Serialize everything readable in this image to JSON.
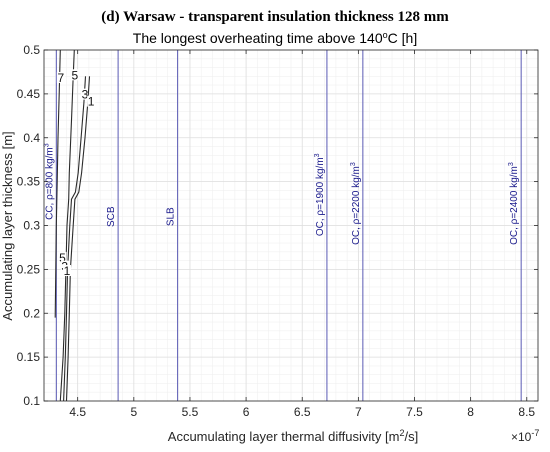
{
  "chart_data": {
    "type": "line",
    "suptitle": "(d) Warsaw - transparent insulation thickness 128 mm",
    "title": "The longest overheating time above 140°C [h]",
    "title_parts": {
      "prefix": "The longest overheating time above 140",
      "sup": "o",
      "suffix": "C [h]"
    },
    "xlabel": "Accumulating layer thermal diffusivity [m²/s]",
    "xlabel_parts": {
      "prefix": "Accumulating layer thermal diffusivity [m",
      "sup": "2",
      "suffix": "/s]"
    },
    "ylabel": "Accumulating layer thickness [m]",
    "x_multiplier": "×10⁻⁷",
    "x_multiplier_parts": {
      "base": "×10",
      "exp": "-7"
    },
    "xlim": [
      4.2,
      8.6
    ],
    "ylim": [
      0.1,
      0.5
    ],
    "xticks": [
      4.5,
      5,
      5.5,
      6,
      6.5,
      7,
      7.5,
      8,
      8.5
    ],
    "xtick_labels": [
      "4.5",
      "5",
      "5.5",
      "6",
      "6.5",
      "7",
      "7.5",
      "8",
      "8.5"
    ],
    "yticks": [
      0.1,
      0.15,
      0.2,
      0.25,
      0.3,
      0.35,
      0.4,
      0.45,
      0.5
    ],
    "ytick_labels": [
      "0.1",
      "0.15",
      "0.2",
      "0.25",
      "0.3",
      "0.35",
      "0.4",
      "0.45",
      "0.5"
    ],
    "grid": "on (major and minor)",
    "colors": {
      "contour": "#2b2b2b",
      "material_line": "#5b5bb5",
      "material_text": "#1a1a8c",
      "grid": "#e6e6e6"
    },
    "materials": [
      {
        "label": "CC, ρ=800 kg/m³",
        "prefix": "CC, ρ=800 kg/m",
        "sup": "3",
        "x": 4.31,
        "label_y": 0.35
      },
      {
        "label": "SCB",
        "prefix": "SCB",
        "sup": "",
        "x": 4.86,
        "label_y": 0.31
      },
      {
        "label": "SLB",
        "prefix": "SLB",
        "sup": "",
        "x": 5.39,
        "label_y": 0.31
      },
      {
        "label": "OC, ρ=1900 kg/m³",
        "prefix": "OC, ρ=1900 kg/m",
        "sup": "3",
        "x": 6.72,
        "label_y": 0.335
      },
      {
        "label": "OC, ρ=2200 kg/m³",
        "prefix": "OC, ρ=2200 kg/m",
        "sup": "3",
        "x": 7.04,
        "label_y": 0.325
      },
      {
        "label": "OC, ρ=2400 kg/m³",
        "prefix": "OC, ρ=2400 kg/m",
        "sup": "3",
        "x": 8.45,
        "label_y": 0.325
      }
    ],
    "contours": [
      {
        "level": 7,
        "label": "7",
        "points": [
          [
            4.3,
            0.195
          ],
          [
            4.305,
            0.25
          ],
          [
            4.31,
            0.3
          ],
          [
            4.318,
            0.35
          ],
          [
            4.325,
            0.4
          ],
          [
            4.335,
            0.45
          ],
          [
            4.345,
            0.5
          ]
        ],
        "labels": [
          {
            "text": "7",
            "x": 4.35,
            "y": 0.467
          }
        ]
      },
      {
        "level": 5,
        "label": "5",
        "points": [
          [
            4.345,
            0.1
          ],
          [
            4.37,
            0.15
          ],
          [
            4.385,
            0.2
          ],
          [
            4.395,
            0.25
          ],
          [
            4.405,
            0.3
          ],
          [
            4.42,
            0.33
          ],
          [
            4.425,
            0.36
          ],
          [
            4.445,
            0.42
          ],
          [
            4.46,
            0.47
          ],
          [
            4.47,
            0.5
          ]
        ],
        "labels": [
          {
            "text": "5",
            "x": 4.475,
            "y": 0.47
          },
          {
            "text": "5",
            "x": 4.365,
            "y": 0.262
          }
        ]
      },
      {
        "level": 3,
        "label": "3",
        "points": [
          [
            4.375,
            0.1
          ],
          [
            4.39,
            0.15
          ],
          [
            4.4,
            0.2
          ],
          [
            4.41,
            0.25
          ],
          [
            4.43,
            0.3
          ],
          [
            4.445,
            0.33
          ],
          [
            4.48,
            0.338
          ],
          [
            4.505,
            0.36
          ],
          [
            4.53,
            0.4
          ],
          [
            4.555,
            0.44
          ],
          [
            4.57,
            0.47
          ]
        ],
        "labels": [
          {
            "text": "3",
            "x": 4.565,
            "y": 0.448
          },
          {
            "text": "3",
            "x": 4.385,
            "y": 0.252
          }
        ]
      },
      {
        "level": 1,
        "label": "1",
        "points": [
          [
            4.4,
            0.1
          ],
          [
            4.415,
            0.15
          ],
          [
            4.425,
            0.2
          ],
          [
            4.435,
            0.25
          ],
          [
            4.46,
            0.3
          ],
          [
            4.475,
            0.33
          ],
          [
            4.51,
            0.338
          ],
          [
            4.535,
            0.36
          ],
          [
            4.565,
            0.4
          ],
          [
            4.59,
            0.44
          ],
          [
            4.605,
            0.47
          ]
        ],
        "labels": [
          {
            "text": "1",
            "x": 4.62,
            "y": 0.44
          },
          {
            "text": "1",
            "x": 4.405,
            "y": 0.247
          }
        ]
      }
    ]
  }
}
